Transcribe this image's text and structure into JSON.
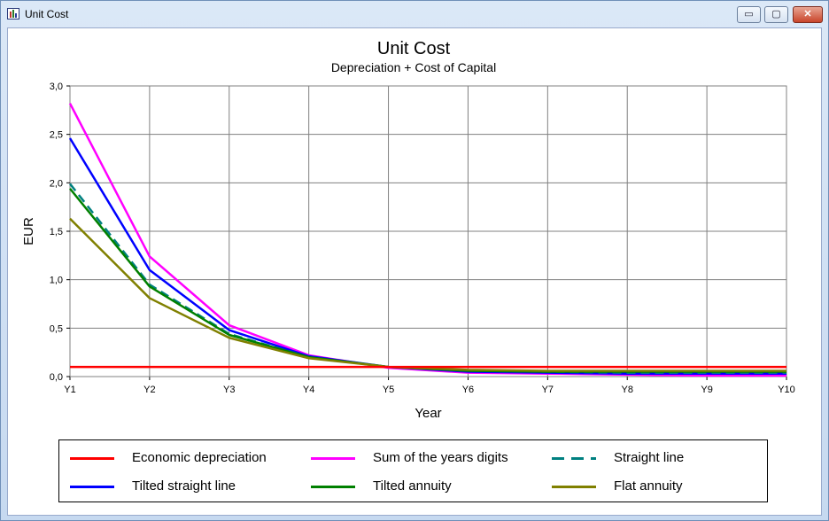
{
  "window": {
    "title": "Unit Cost",
    "controls": {
      "minimize": "▭",
      "maximize": "▢",
      "close": "✕"
    }
  },
  "chart_data": {
    "type": "line",
    "title": "Unit Cost",
    "subtitle": "Depreciation + Cost of Capital",
    "xlabel": "Year",
    "ylabel": "EUR",
    "categories": [
      "Y1",
      "Y2",
      "Y3",
      "Y4",
      "Y5",
      "Y6",
      "Y7",
      "Y8",
      "Y9",
      "Y10"
    ],
    "ylim": [
      0,
      3
    ],
    "yticks": [
      "0,0",
      "0,5",
      "1,0",
      "1,5",
      "2,0",
      "2,5",
      "3,0"
    ],
    "grid": true,
    "legend_position": "bottom",
    "series": [
      {
        "name": "Economic depreciation",
        "color": "#ff0000",
        "style": "solid",
        "values": [
          0.1,
          0.1,
          0.1,
          0.1,
          0.1,
          0.1,
          0.1,
          0.1,
          0.1,
          0.1
        ]
      },
      {
        "name": "Sum of the years digits",
        "color": "#ff00ff",
        "style": "solid",
        "values": [
          2.82,
          1.24,
          0.53,
          0.22,
          0.09,
          0.04,
          0.03,
          0.02,
          0.01,
          0.01
        ]
      },
      {
        "name": "Straight line",
        "color": "#008080",
        "style": "dashed",
        "values": [
          1.99,
          0.95,
          0.44,
          0.2,
          0.1,
          0.06,
          0.05,
          0.04,
          0.04,
          0.04
        ]
      },
      {
        "name": "Tilted straight line",
        "color": "#0000ff",
        "style": "solid",
        "values": [
          2.46,
          1.1,
          0.48,
          0.21,
          0.1,
          0.05,
          0.04,
          0.03,
          0.03,
          0.03
        ]
      },
      {
        "name": "Tilted annuity",
        "color": "#008000",
        "style": "solid",
        "values": [
          1.94,
          0.93,
          0.43,
          0.2,
          0.1,
          0.06,
          0.05,
          0.05,
          0.05,
          0.05
        ]
      },
      {
        "name": "Flat annuity",
        "color": "#808000",
        "style": "solid",
        "values": [
          1.63,
          0.81,
          0.4,
          0.19,
          0.1,
          0.07,
          0.06,
          0.06,
          0.06,
          0.06
        ]
      }
    ]
  }
}
